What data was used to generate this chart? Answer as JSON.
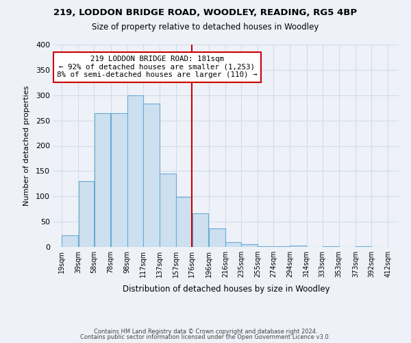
{
  "title1": "219, LODDON BRIDGE ROAD, WOODLEY, READING, RG5 4BP",
  "title2": "Size of property relative to detached houses in Woodley",
  "xlabel": "Distribution of detached houses by size in Woodley",
  "ylabel": "Number of detached properties",
  "bar_left_edges": [
    19,
    39,
    58,
    78,
    98,
    117,
    137,
    157,
    176,
    196,
    216,
    235,
    255,
    274,
    294,
    314,
    333,
    353,
    373,
    392
  ],
  "bar_heights": [
    23,
    130,
    265,
    265,
    299,
    283,
    145,
    99,
    67,
    37,
    9,
    5,
    2,
    2,
    3,
    0,
    2,
    0,
    2,
    0
  ],
  "bin_widths": [
    20,
    19,
    20,
    20,
    19,
    20,
    20,
    19,
    20,
    20,
    19,
    20,
    19,
    20,
    20,
    19,
    20,
    20,
    19,
    20
  ],
  "bar_color": "#cce0f0",
  "bar_edge_color": "#6aaad4",
  "property_line_x": 176,
  "property_line_color": "#cc0000",
  "annotation_title": "219 LODDON BRIDGE ROAD: 181sqm",
  "annotation_line1": "← 92% of detached houses are smaller (1,253)",
  "annotation_line2": "8% of semi-detached houses are larger (110) →",
  "annotation_box_color": "#ffffff",
  "annotation_box_edge": "#cc0000",
  "tick_labels": [
    "19sqm",
    "39sqm",
    "58sqm",
    "78sqm",
    "98sqm",
    "117sqm",
    "137sqm",
    "157sqm",
    "176sqm",
    "196sqm",
    "216sqm",
    "235sqm",
    "255sqm",
    "274sqm",
    "294sqm",
    "314sqm",
    "333sqm",
    "353sqm",
    "373sqm",
    "392sqm",
    "412sqm"
  ],
  "tick_positions": [
    19,
    39,
    58,
    78,
    98,
    117,
    137,
    157,
    176,
    196,
    216,
    235,
    255,
    274,
    294,
    314,
    333,
    353,
    373,
    392,
    412
  ],
  "ylim": [
    0,
    400
  ],
  "xlim": [
    9,
    425
  ],
  "yticks": [
    0,
    50,
    100,
    150,
    200,
    250,
    300,
    350,
    400
  ],
  "footer1": "Contains HM Land Registry data © Crown copyright and database right 2024.",
  "footer2": "Contains public sector information licensed under the Open Government Licence v3.0.",
  "grid_color": "#d0dce8",
  "background_color": "#eef2f8"
}
